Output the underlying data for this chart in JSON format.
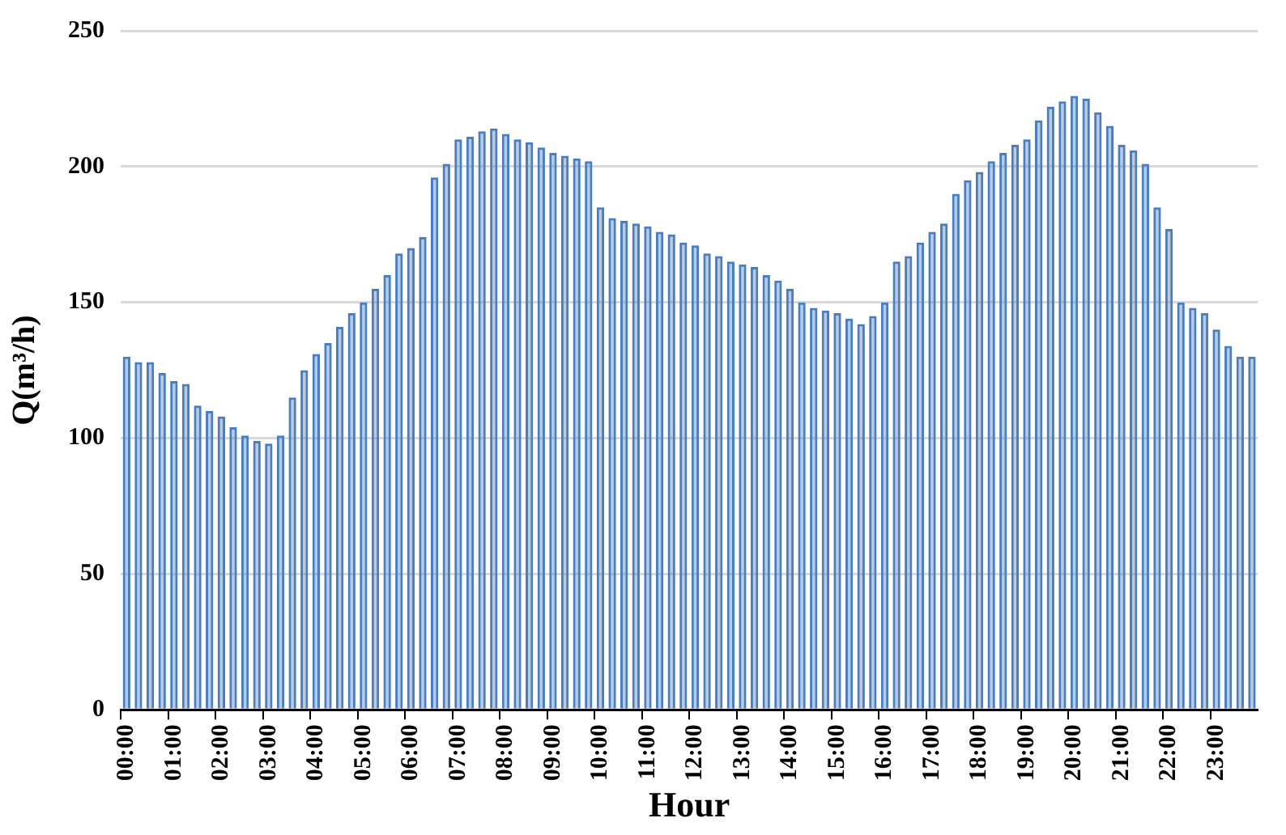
{
  "chart_data": {
    "type": "bar",
    "xlabel": "Hour",
    "ylabel": "Q(m³/h)",
    "categories": [
      "00:00",
      null,
      null,
      null,
      "01:00",
      null,
      null,
      null,
      "02:00",
      null,
      null,
      null,
      "03:00",
      null,
      null,
      null,
      "04:00",
      null,
      null,
      null,
      "05:00",
      null,
      null,
      null,
      "06:00",
      null,
      null,
      null,
      "07:00",
      null,
      null,
      null,
      "08:00",
      null,
      null,
      null,
      "09:00",
      null,
      null,
      null,
      "10:00",
      null,
      null,
      null,
      "11:00",
      null,
      null,
      null,
      "12:00",
      null,
      null,
      null,
      "13:00",
      null,
      null,
      null,
      "14:00",
      null,
      null,
      null,
      "15:00",
      null,
      null,
      null,
      "16:00",
      null,
      null,
      null,
      "17:00",
      null,
      null,
      null,
      "18:00",
      null,
      null,
      null,
      "19:00",
      null,
      null,
      null,
      "20:00",
      null,
      null,
      null,
      "21:00",
      null,
      null,
      null,
      "22:00",
      null,
      null,
      null,
      "23:00",
      null,
      null,
      null
    ],
    "values": [
      130,
      128,
      128,
      124,
      121,
      120,
      112,
      110,
      108,
      104,
      101,
      99,
      98,
      101,
      115,
      125,
      131,
      135,
      141,
      146,
      150,
      155,
      160,
      168,
      170,
      174,
      196,
      201,
      210,
      211,
      213,
      214,
      212,
      210,
      209,
      207,
      205,
      204,
      203,
      202,
      185,
      181,
      180,
      179,
      178,
      176,
      175,
      172,
      171,
      168,
      167,
      165,
      164,
      163,
      160,
      158,
      155,
      150,
      148,
      147,
      146,
      144,
      142,
      145,
      150,
      165,
      167,
      172,
      176,
      179,
      190,
      195,
      198,
      202,
      205,
      208,
      210,
      217,
      222,
      224,
      226,
      225,
      220,
      215,
      208,
      206,
      201,
      185,
      177,
      150,
      148,
      146,
      140,
      134,
      130,
      130
    ],
    "color": "#4a7ebf",
    "ylim": [
      0,
      250
    ],
    "yticks": [
      0,
      50,
      100,
      150,
      200,
      250
    ],
    "grid": "y",
    "legend": false
  }
}
